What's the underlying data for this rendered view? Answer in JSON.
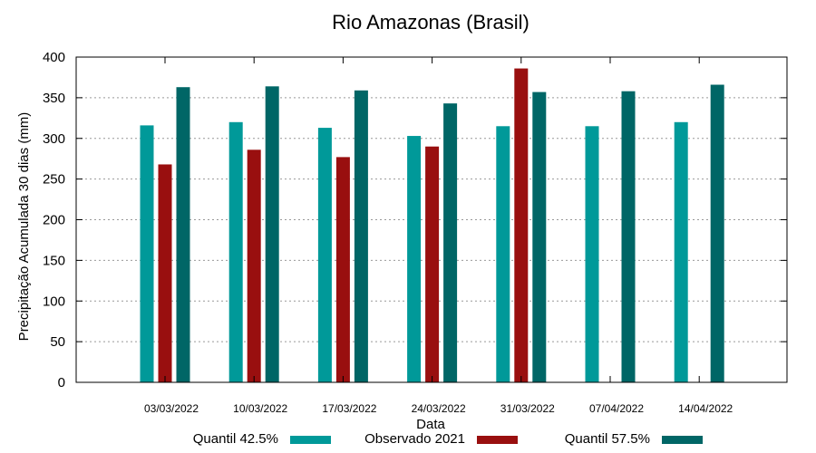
{
  "chart_data": {
    "type": "bar",
    "title": "Rio Amazonas (Brasil)",
    "xlabel": "Data",
    "ylabel": "Precipitação Acumulada 30 dias (mm)",
    "ylim": [
      0,
      400
    ],
    "yticks": [
      0,
      50,
      100,
      150,
      200,
      250,
      300,
      350,
      400
    ],
    "grid": true,
    "legend_position": "bottom",
    "categories": [
      "03/03/2022",
      "10/03/2022",
      "17/03/2022",
      "24/03/2022",
      "31/03/2022",
      "07/04/2022",
      "14/04/2022"
    ],
    "series": [
      {
        "name": "Quantil 42.5%",
        "color": "#009999",
        "values": [
          316,
          320,
          313,
          303,
          315,
          315,
          320
        ]
      },
      {
        "name": "Observado 2021",
        "color": "#990f0f",
        "values": [
          268,
          286,
          277,
          290,
          386,
          null,
          null
        ]
      },
      {
        "name": "Quantil 57.5%",
        "color": "#006666",
        "values": [
          363,
          364,
          359,
          343,
          357,
          358,
          366
        ]
      }
    ]
  }
}
